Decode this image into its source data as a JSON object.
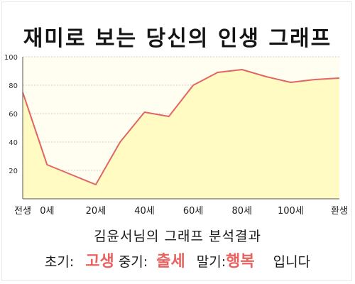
{
  "title": "재미로 보는 당신의 인생 그래프",
  "subtitle": "김윤서님의 그래프 분석결과",
  "summary": {
    "early_label": "초기:",
    "early_value": "고생",
    "mid_label": "중기:",
    "mid_value": "출세",
    "late_label": "말기:",
    "late_value": "행복",
    "ending": "입니다"
  },
  "colors": {
    "line": "#e06666",
    "area": "#fffbc2",
    "plot_bg": "#fffef0",
    "highlight": "#e8625f",
    "grid": "#cfcfcf"
  },
  "chart_data": {
    "type": "area",
    "title": "",
    "xlabel": "",
    "ylabel": "",
    "ylim": [
      0,
      100
    ],
    "yticks": [
      20,
      40,
      60,
      80,
      100
    ],
    "grid": true,
    "x_labels": [
      "전생",
      "0세",
      "20세",
      "40세",
      "60세",
      "80세",
      "100세",
      "환생"
    ],
    "x": [
      "전생",
      "0세",
      "",
      "20세",
      "",
      "40세",
      "",
      "60세",
      "",
      "80세",
      "",
      "100세",
      "",
      "환생"
    ],
    "values": [
      75,
      24,
      17,
      10,
      40,
      61,
      58,
      80,
      89,
      91,
      86,
      82,
      84,
      85
    ]
  }
}
